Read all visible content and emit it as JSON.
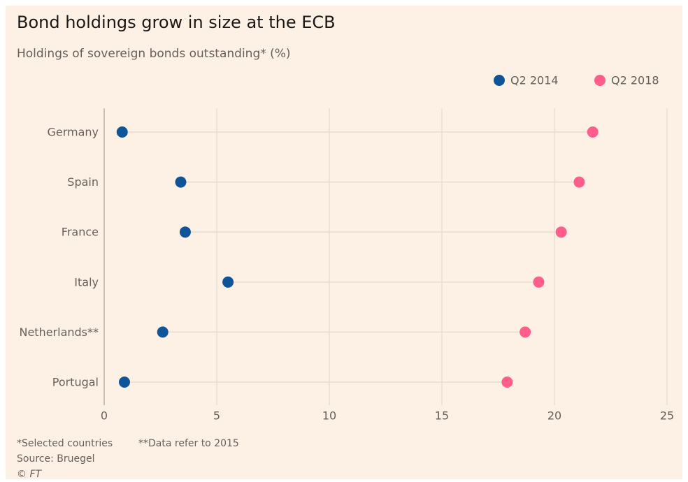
{
  "chart_data": {
    "type": "dot",
    "title": "Bond holdings grow in size at the ECB",
    "subtitle": "Holdings of sovereign bonds outstanding* (%)",
    "categories": [
      "Germany",
      "Spain",
      "France",
      "Italy",
      "Netherlands**",
      "Portugal"
    ],
    "series": [
      {
        "name": "Q2 2014",
        "color": "#0f5499",
        "values": [
          0.8,
          3.4,
          3.6,
          5.5,
          2.6,
          0.9
        ]
      },
      {
        "name": "Q2 2018",
        "color": "#ff5e8d",
        "values": [
          21.7,
          21.1,
          20.3,
          19.3,
          18.7,
          17.9
        ]
      }
    ],
    "xlim": [
      0,
      25
    ],
    "xticks": [
      0,
      5,
      10,
      15,
      20,
      25
    ],
    "grid": true,
    "legend": "top-right",
    "footnotes": [
      "*Selected countries",
      "**Data refer to 2015"
    ],
    "source": "Source: Bruegel",
    "copyright": "© FT"
  }
}
